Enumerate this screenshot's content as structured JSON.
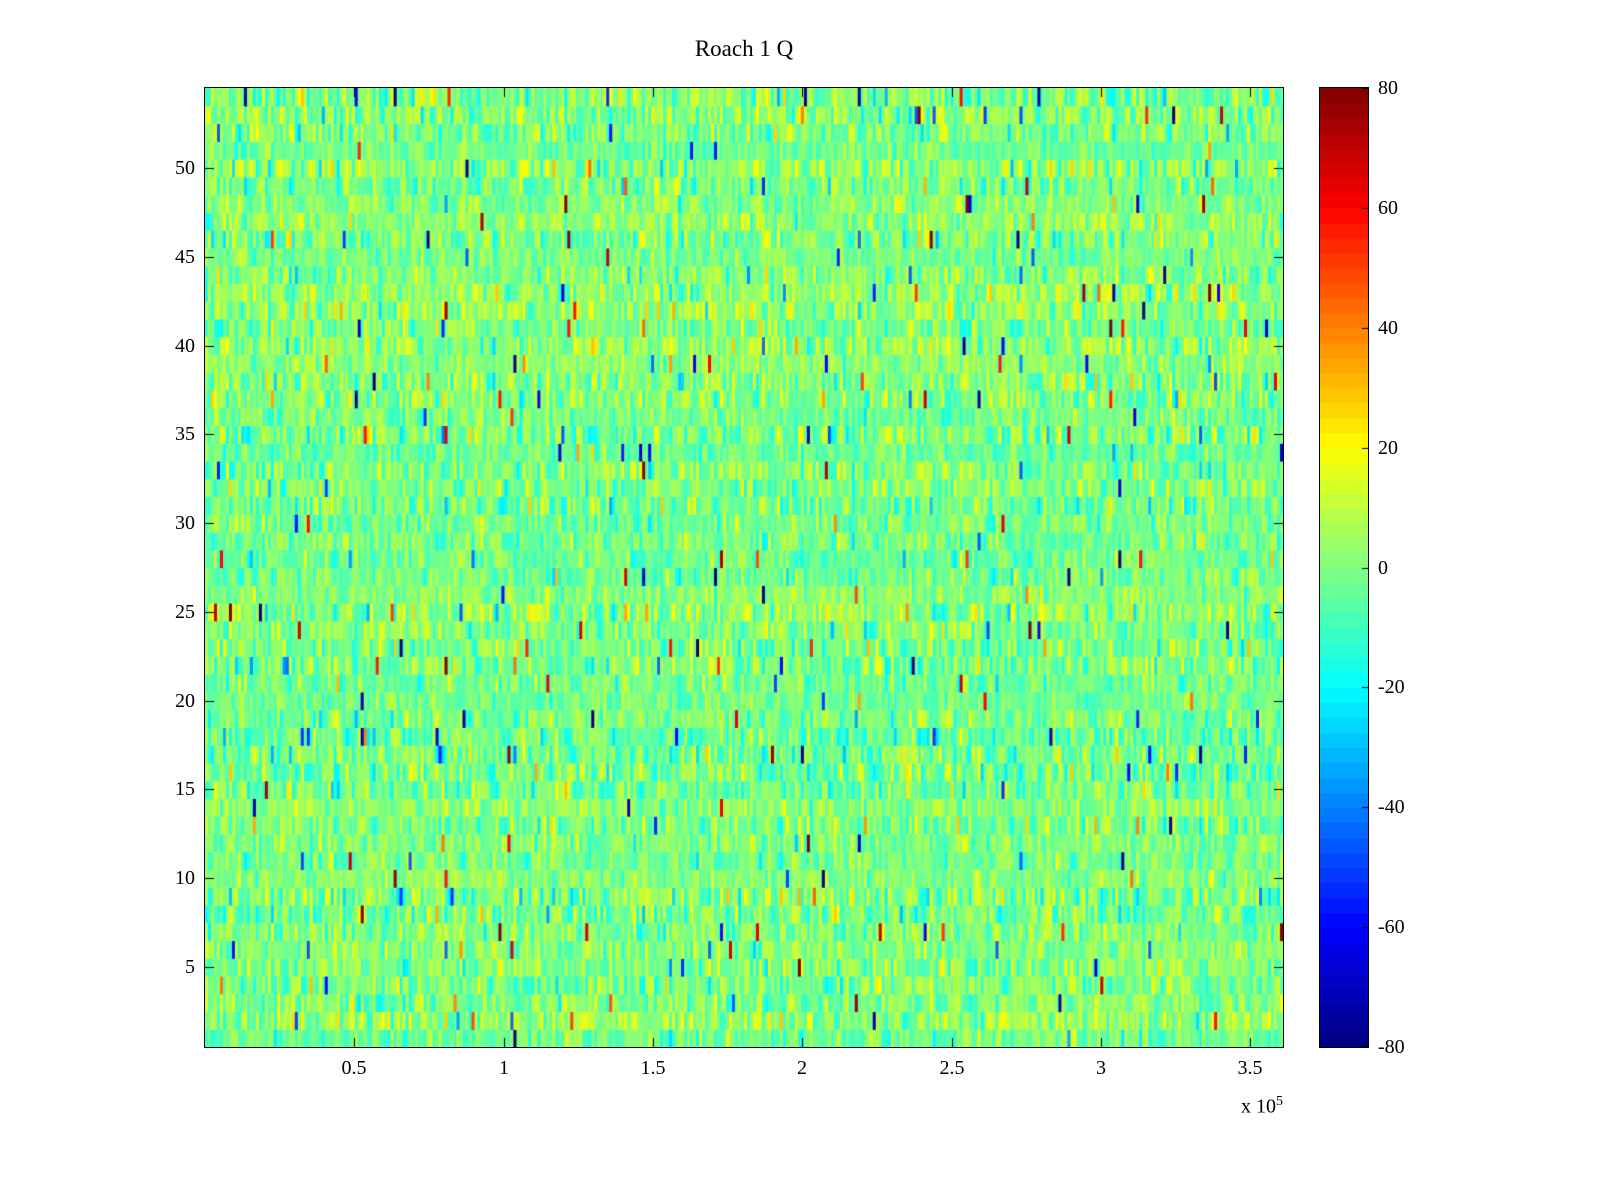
{
  "figure": {
    "background": "#ffffff",
    "axis_color": "#000000"
  },
  "chart_data": {
    "type": "heatmap",
    "title": "Roach 1 Q",
    "xlabel": "",
    "ylabel": "",
    "x_scale_prefix": "x 10",
    "x_scale_exponent": "5",
    "x_range": [
      0,
      361000
    ],
    "x_tick_values": [
      50000,
      100000,
      150000,
      200000,
      250000,
      300000,
      350000
    ],
    "x_tick_labels": [
      "0.5",
      "1",
      "1.5",
      "2",
      "2.5",
      "3",
      "3.5"
    ],
    "y_range": [
      0.5,
      54.5
    ],
    "y_tick_values": [
      5,
      10,
      15,
      20,
      25,
      30,
      35,
      40,
      45,
      50
    ],
    "y_tick_labels": [
      "5",
      "10",
      "15",
      "20",
      "25",
      "30",
      "35",
      "40",
      "45",
      "50"
    ],
    "rows": 54,
    "cols": 360,
    "colormap": "jet",
    "clim": [
      -80,
      80
    ],
    "colorbar_tick_values": [
      80,
      60,
      40,
      20,
      0,
      -20,
      -40,
      -60,
      -80
    ],
    "colorbar_tick_labels": [
      "80",
      "60",
      "40",
      "20",
      "0",
      "-20",
      "-40",
      "-60",
      "-80"
    ],
    "colorbar_levels": 64,
    "grid": false,
    "legend": "none",
    "noise_model": {
      "seed": 1337,
      "mean": 0,
      "std": 8,
      "row_bias_amp": 3.5,
      "outlier_prob": 0.015,
      "outlier_min": 30,
      "outlier_max": 80
    }
  }
}
